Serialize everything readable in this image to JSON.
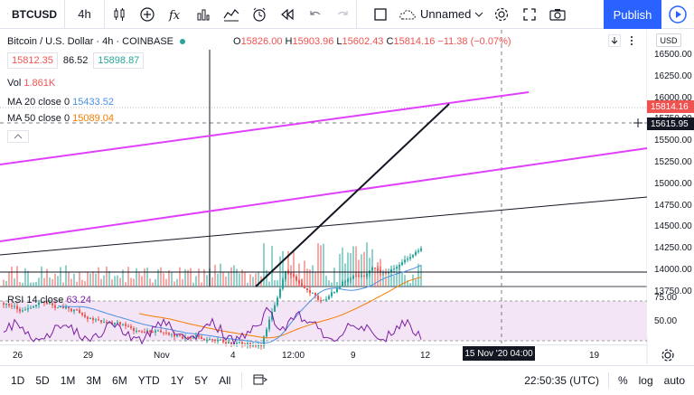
{
  "toolbar": {
    "symbol": "BTCUSD",
    "interval": "4h",
    "layout_name": "Unnamed",
    "publish_label": "Publish"
  },
  "legend": {
    "title": "Bitcoin / U.S. Dollar · 4h · COINBASE",
    "o_label": "O",
    "o": "15826.00",
    "h_label": "H",
    "h": "15903.96",
    "l_label": "L",
    "l": "15602.43",
    "c_label": "C",
    "c": "15814.16",
    "change": "−11.38 (−0.07%)"
  },
  "quote": {
    "bid": "15812.35",
    "spread": "86.52",
    "ask": "15898.87"
  },
  "indicators": {
    "vol_label": "Vol",
    "vol_value": "1.861K",
    "ma20_label": "MA 20 close 0",
    "ma20_value": "15433.52",
    "ma50_label": "MA 50 close 0",
    "ma50_value": "15089.04",
    "rsi_label": "RSI 14 close",
    "rsi_value": "63.24"
  },
  "price_axis": {
    "currency": "USD",
    "labels": [
      "16500.00",
      "16250.00",
      "16000.00",
      "15750.00",
      "15500.00",
      "15250.00",
      "15000.00",
      "14750.00",
      "14500.00",
      "14250.00",
      "14000.00",
      "13750.00"
    ],
    "last_price": "15814.16",
    "cursor_price": "15615.95",
    "rsi_labels": [
      "75.00",
      "50.00"
    ]
  },
  "time_axis": {
    "labels": [
      "26",
      "29",
      "Nov",
      "4",
      "12:00",
      "9",
      "12",
      "19"
    ],
    "cursor_label": "15 Nov '20  04:00"
  },
  "bottom": {
    "ranges": [
      "1D",
      "5D",
      "1M",
      "3M",
      "6M",
      "YTD",
      "1Y",
      "5Y",
      "All"
    ],
    "clock": "22:50:35 (UTC)",
    "percent": "%",
    "log": "log",
    "auto": "auto"
  },
  "colors": {
    "up": "#26a69a",
    "down": "#ef5350",
    "accent": "#2962ff",
    "ma20": "#4a90e2",
    "ma50": "#f57c00",
    "channel": "#e040fb",
    "rsi": "#7b1fa2"
  }
}
